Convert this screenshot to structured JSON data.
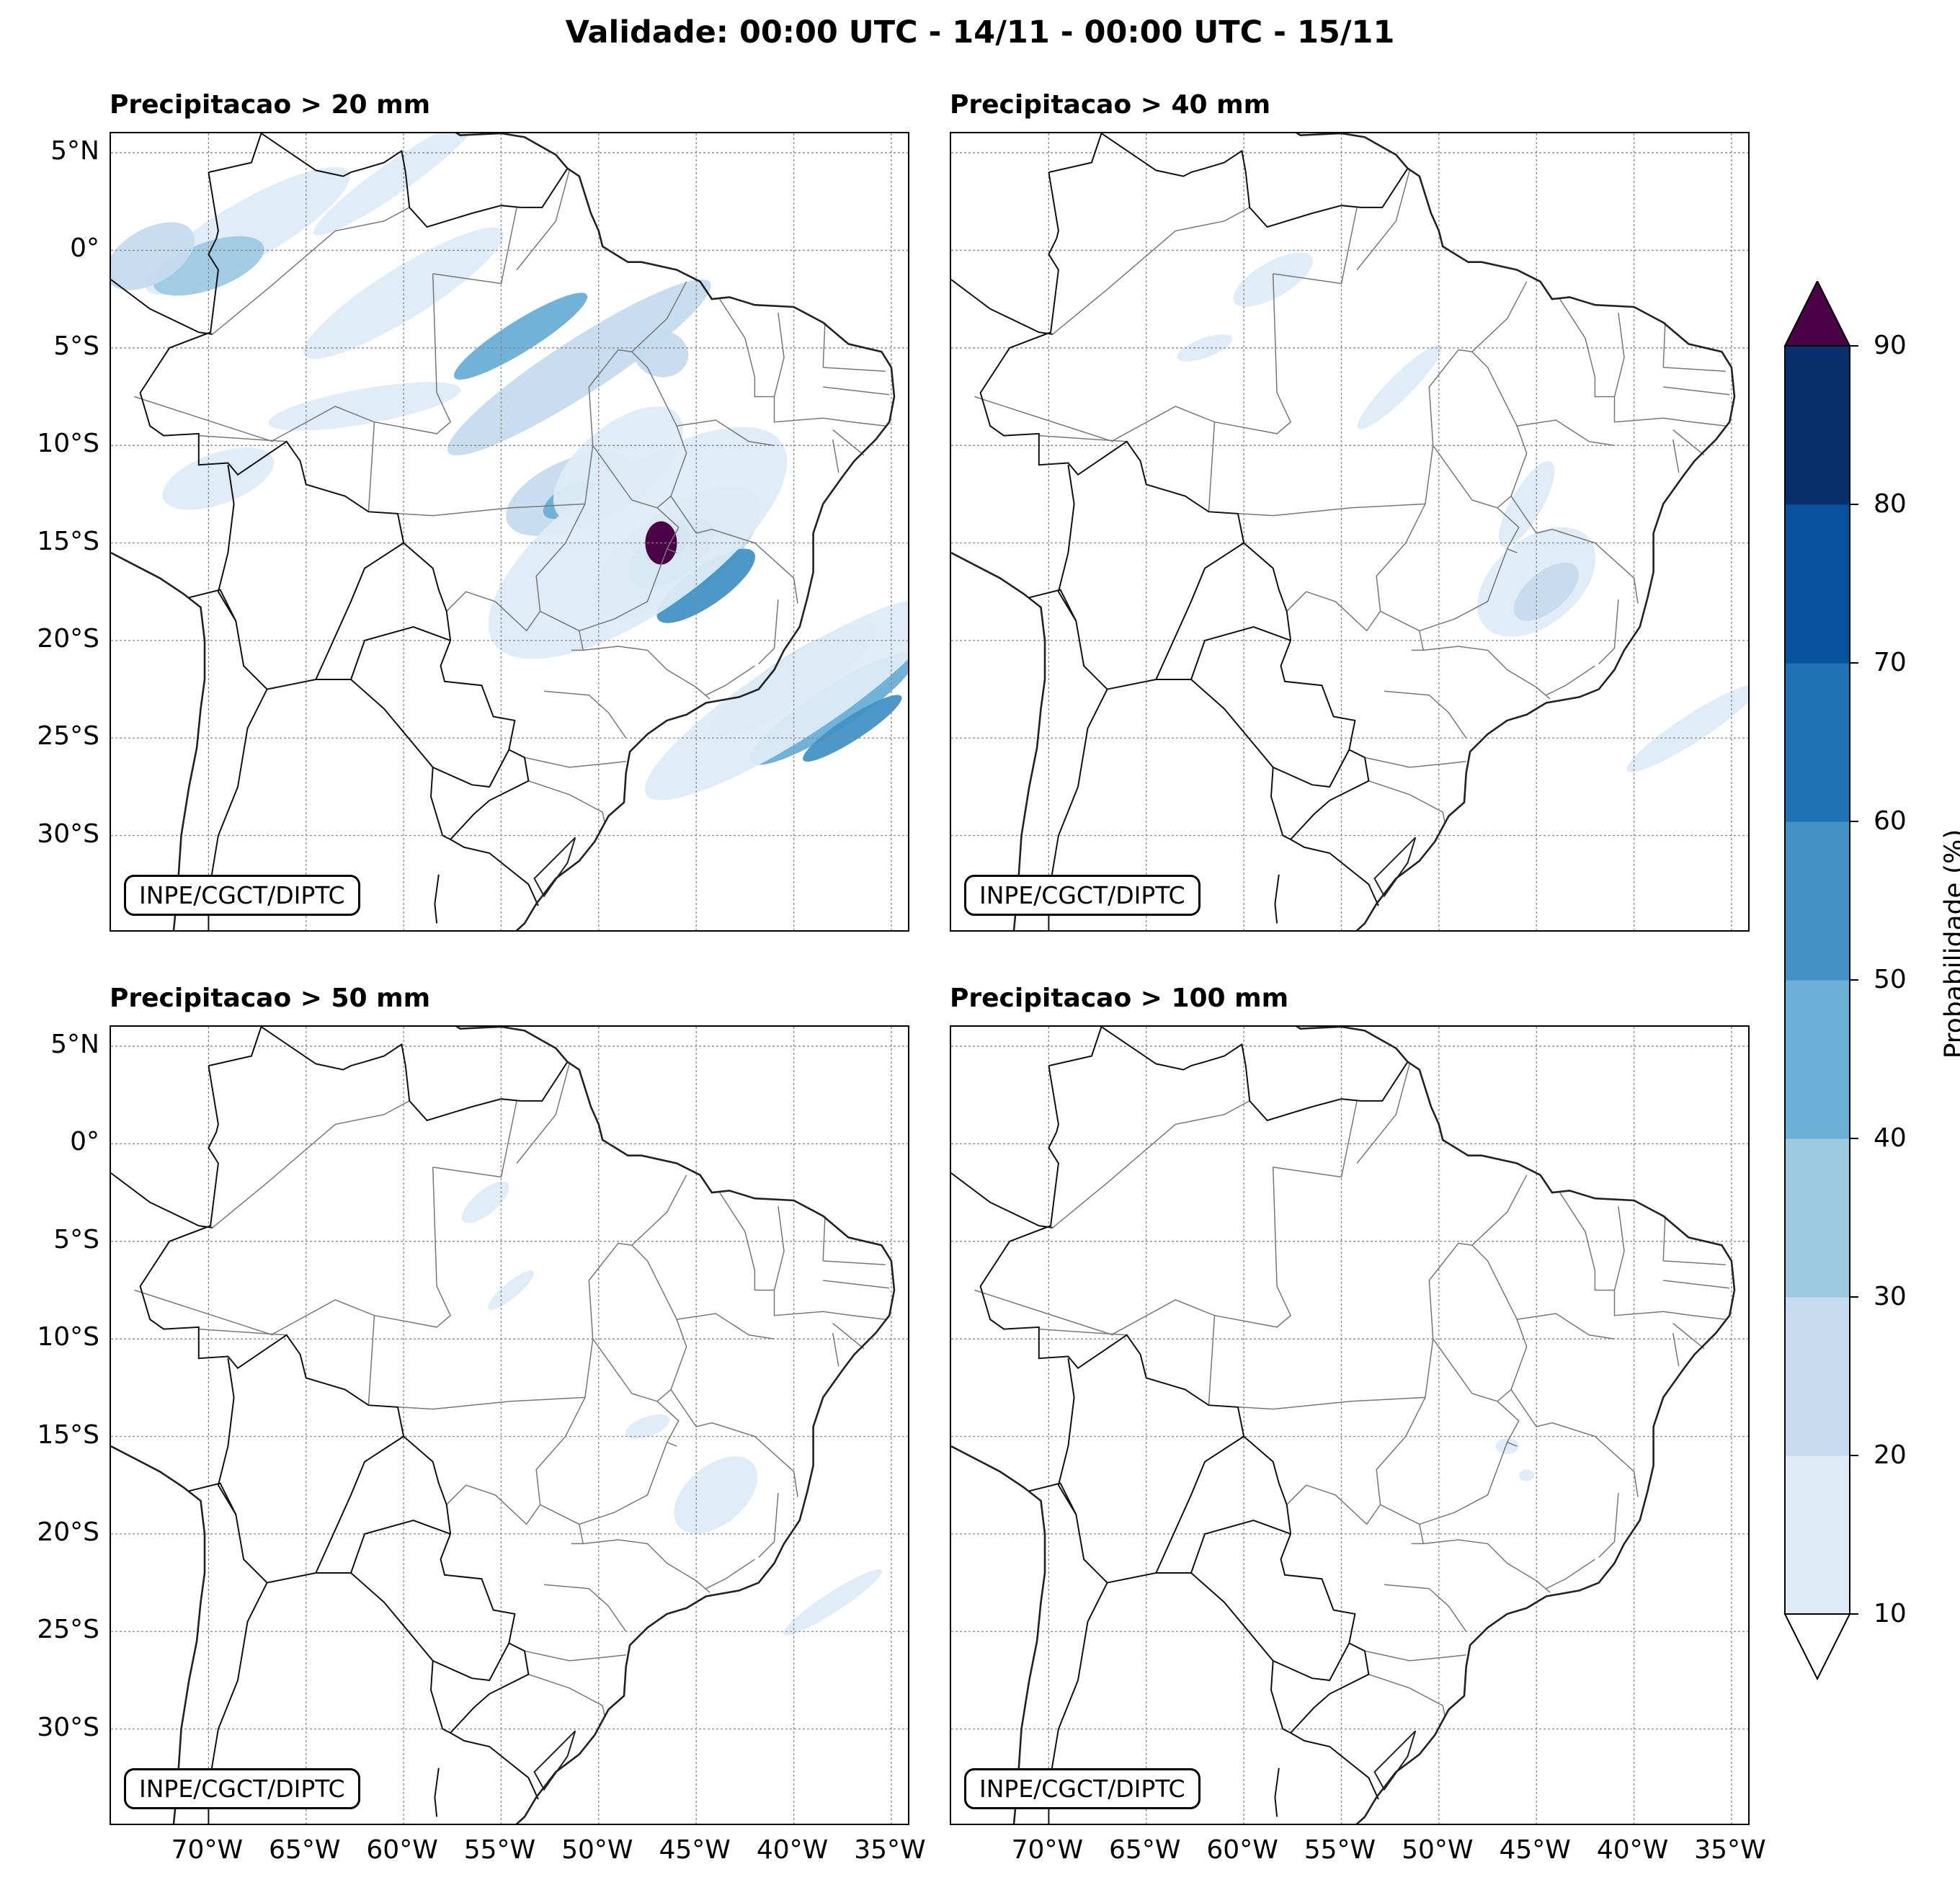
{
  "title": "Validade: 00:00 UTC - 14/11 - 00:00 UTC - 15/11",
  "panels": [
    {
      "title": "Precipitacao > 20 mm",
      "credit": "INPE/CGCT/DIPTC",
      "threshold_mm": 20
    },
    {
      "title": "Precipitacao > 40 mm",
      "credit": "INPE/CGCT/DIPTC",
      "threshold_mm": 40
    },
    {
      "title": "Precipitacao > 50 mm",
      "credit": "INPE/CGCT/DIPTC",
      "threshold_mm": 50
    },
    {
      "title": "Precipitacao > 100 mm",
      "credit": "INPE/CGCT/DIPTC",
      "threshold_mm": 100
    }
  ],
  "lat_ticks": [
    "5°N",
    "0°",
    "5°S",
    "10°S",
    "15°S",
    "20°S",
    "25°S",
    "30°S"
  ],
  "lat_values": [
    5,
    0,
    -5,
    -10,
    -15,
    -20,
    -25,
    -30
  ],
  "lon_ticks": [
    "70°W",
    "65°W",
    "60°W",
    "55°W",
    "50°W",
    "45°W",
    "40°W",
    "35°W"
  ],
  "lon_values": [
    -70,
    -65,
    -60,
    -55,
    -50,
    -45,
    -40,
    -35
  ],
  "extent": {
    "lon_min": -75,
    "lon_max": -34,
    "lat_min": -35,
    "lat_max": 6
  },
  "colorbar": {
    "label": "Probabilidade (%)",
    "ticks": [
      "10",
      "20",
      "30",
      "40",
      "50",
      "60",
      "70",
      "80",
      "90"
    ],
    "levels": [
      10,
      20,
      30,
      40,
      50,
      60,
      70,
      80,
      90
    ],
    "colors": [
      "#deebf7",
      "#c6dbef",
      "#9ecae1",
      "#6baed6",
      "#4292c6",
      "#2171b5",
      "#08519c",
      "#08306b"
    ],
    "over_color": "#4b0145",
    "under_color": "#ffffff"
  }
}
